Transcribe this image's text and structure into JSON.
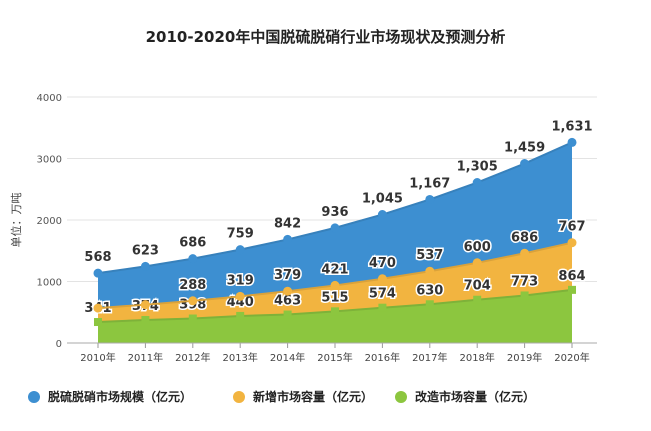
{
  "chart_data": {
    "type": "area",
    "stacked": true,
    "title": "2010-2020年中国脱硫脱硝行业市场现状及预测分析",
    "ylabel": "单位：万吨",
    "ylim": [
      0,
      4000
    ],
    "yticks": [
      0,
      1000,
      2000,
      3000,
      4000
    ],
    "grid": true,
    "legend_position": "bottom",
    "categories": [
      "2010年",
      "2011年",
      "2012年",
      "2013年",
      "2014年",
      "2015年",
      "2016年",
      "2017年",
      "2018年",
      "2019年",
      "2020年"
    ],
    "series": [
      {
        "name": "改造市场容量（亿元）",
        "color": "#8cc63f",
        "values": [
          341,
          374,
          398,
          440,
          463,
          515,
          574,
          630,
          704,
          773,
          864
        ],
        "labels": [
          "341",
          "374",
          "398",
          "440",
          "463",
          "515",
          "574",
          "630",
          "704",
          "773",
          "864"
        ]
      },
      {
        "name": "新增市场容量（亿元）",
        "color": "#f2b440",
        "values": [
          227,
          249,
          288,
          319,
          379,
          421,
          470,
          537,
          600,
          686,
          767
        ],
        "labels": [
          null,
          null,
          "288",
          "319",
          "379",
          "421",
          "470",
          "537",
          "600",
          "686",
          "767"
        ]
      },
      {
        "name": "脱硫脱硝市场规模（亿元）",
        "color": "#3d8fd1",
        "values": [
          568,
          623,
          686,
          759,
          842,
          936,
          1045,
          1167,
          1305,
          1459,
          1631
        ],
        "labels": [
          "568",
          "623",
          "686",
          "759",
          "842",
          "936",
          "1,045",
          "1,167",
          "1,305",
          "1,459",
          "1,631"
        ]
      }
    ]
  },
  "legend_order": [
    2,
    1,
    0
  ]
}
